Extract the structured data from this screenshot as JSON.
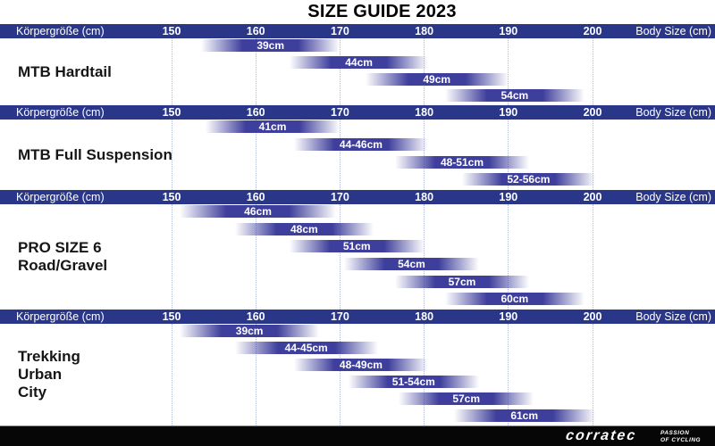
{
  "title": "SIZE GUIDE 2023",
  "colors": {
    "header_bar": "#2a3789",
    "bar": "#3e3e9c",
    "gridline": "#b4bace",
    "title_text": "#000000",
    "header_text": "#ffffff",
    "bar_label_text": "#ffffff",
    "footer_bg": "#060606"
  },
  "axis": {
    "left_label": "Körpergröße (cm)",
    "right_label": "Body Size (cm)",
    "ticks": [
      150,
      160,
      170,
      180,
      190,
      200
    ],
    "range": [
      150,
      200
    ],
    "unit": "cm",
    "grid": "dotted-vertical"
  },
  "chart_data": [
    {
      "type": "bar",
      "orientation": "horizontal-range",
      "title": "MTB Hardtail",
      "section_label_lines": [
        "MTB Hardtail"
      ],
      "xlabel_left": "Körpergröße (cm)",
      "xlabel_right": "Body Size (cm)",
      "xlim": [
        150,
        200
      ],
      "bars": [
        {
          "label": "39cm",
          "from": 153.5,
          "to": 170
        },
        {
          "label": "44cm",
          "from": 164,
          "to": 180.5
        },
        {
          "label": "49cm",
          "from": 173,
          "to": 190
        },
        {
          "label": "54cm",
          "from": 182.5,
          "to": 199
        }
      ]
    },
    {
      "type": "bar",
      "orientation": "horizontal-range",
      "title": "MTB Full Suspension",
      "section_label_lines": [
        "MTB Full Suspension"
      ],
      "xlabel_left": "Körpergröße (cm)",
      "xlabel_right": "Body Size (cm)",
      "xlim": [
        150,
        200
      ],
      "bars": [
        {
          "label": "41cm",
          "from": 154,
          "to": 170
        },
        {
          "label": "44-46cm",
          "from": 164.5,
          "to": 180.5
        },
        {
          "label": "48-51cm",
          "from": 176.5,
          "to": 192.5
        },
        {
          "label": "52-56cm",
          "from": 184.5,
          "to": 200.3
        }
      ]
    },
    {
      "type": "bar",
      "orientation": "horizontal-range",
      "title": "PRO SIZE 6 Road/Gravel",
      "section_label_lines": [
        "PRO SIZE 6",
        "Road/Gravel"
      ],
      "xlabel_left": "Körpergröße (cm)",
      "xlabel_right": "Body Size (cm)",
      "xlim": [
        150,
        200
      ],
      "bars": [
        {
          "label": "46cm",
          "from": 151,
          "to": 169.5
        },
        {
          "label": "48cm",
          "from": 157.5,
          "to": 174
        },
        {
          "label": "51cm",
          "from": 164,
          "to": 180
        },
        {
          "label": "54cm",
          "from": 170.5,
          "to": 186.5
        },
        {
          "label": "57cm",
          "from": 176.5,
          "to": 192.5
        },
        {
          "label": "60cm",
          "from": 182.5,
          "to": 199
        }
      ]
    },
    {
      "type": "bar",
      "orientation": "horizontal-range",
      "title": "Trekking Urban City",
      "section_label_lines": [
        "Trekking",
        "Urban",
        "City"
      ],
      "xlabel_left": "Körpergröße (cm)",
      "xlabel_right": "Body Size (cm)",
      "xlim": [
        150,
        200
      ],
      "bars": [
        {
          "label": "39cm",
          "from": 151,
          "to": 167.5
        },
        {
          "label": "44-45cm",
          "from": 157.5,
          "to": 174.5
        },
        {
          "label": "48-49cm",
          "from": 164.5,
          "to": 180.5
        },
        {
          "label": "51-54cm",
          "from": 171,
          "to": 186.5
        },
        {
          "label": "57cm",
          "from": 177,
          "to": 193
        },
        {
          "label": "61cm",
          "from": 183.5,
          "to": 200.3
        }
      ]
    }
  ],
  "footer": {
    "logo": "corratec",
    "tagline_line1": "PASSION",
    "tagline_line2": "OF CYCLING"
  }
}
